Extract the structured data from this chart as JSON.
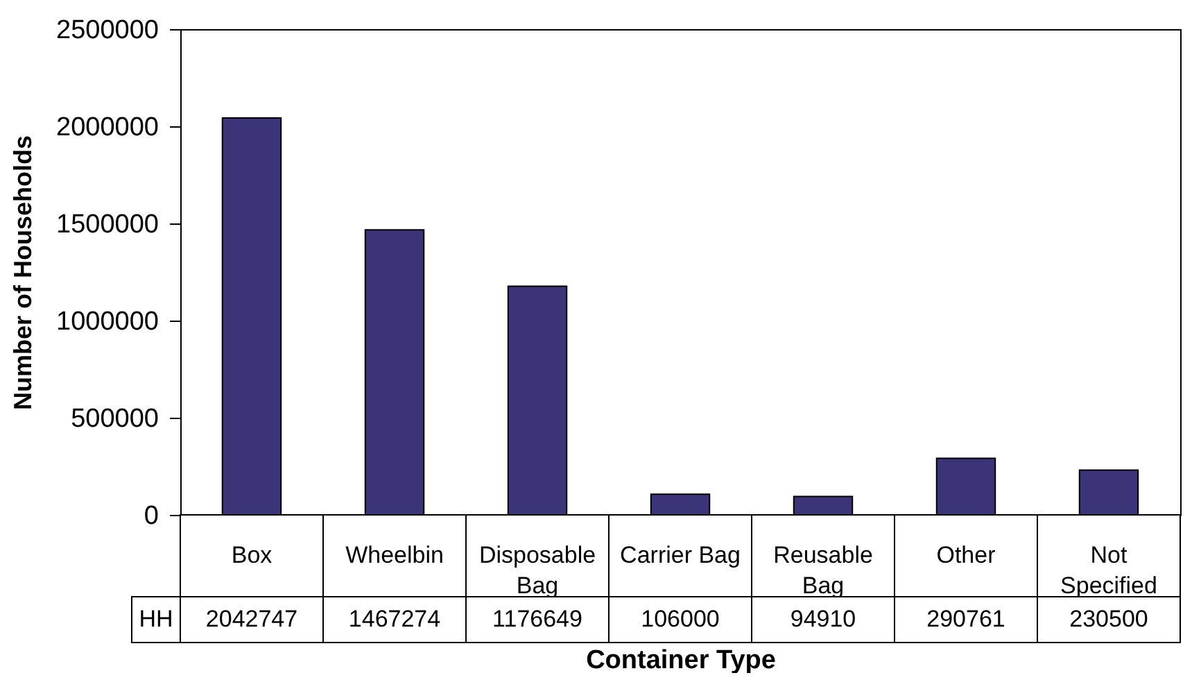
{
  "chart_data": {
    "type": "bar",
    "xlabel": "Container Type",
    "ylabel": "Number of Households",
    "categories": [
      "Box",
      "Wheelbin",
      "Disposable Bag",
      "Carrier Bag",
      "Reusable Bag",
      "Other",
      "Not Specified"
    ],
    "series": [
      {
        "name": "HH",
        "color": "#3b3478",
        "values": [
          2042747,
          1467274,
          1176649,
          106000,
          94910,
          290761,
          230500
        ]
      }
    ],
    "ylim": [
      0,
      2500000
    ],
    "yticks": [
      0,
      500000,
      1000000,
      1500000,
      2000000,
      2500000
    ],
    "data_labels": true
  }
}
